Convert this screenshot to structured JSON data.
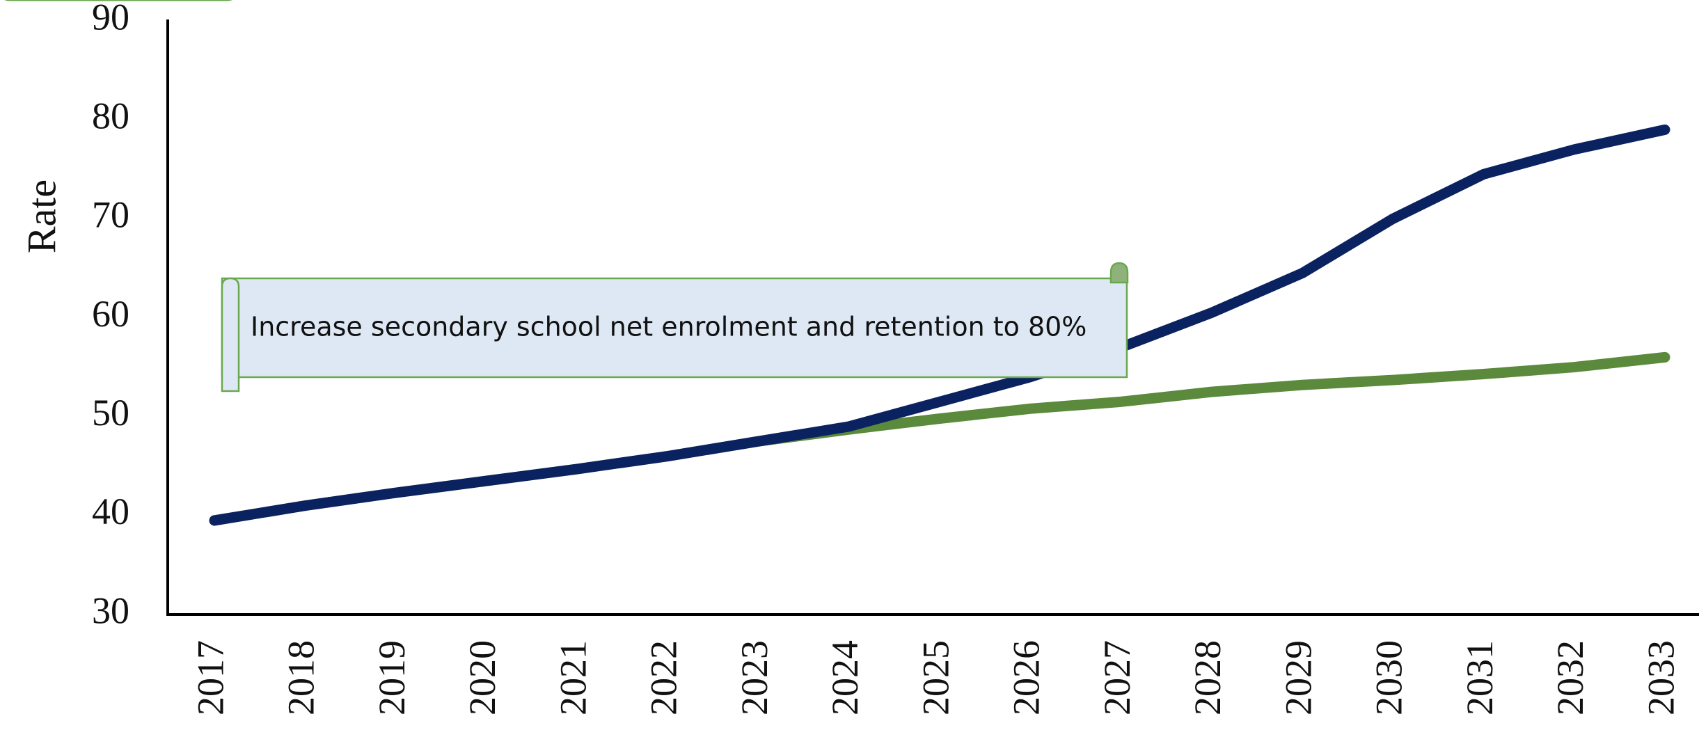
{
  "chart_data": {
    "type": "line",
    "y_label": "Rate",
    "annotation": "Increase secondary school net enrolment and retention to 80%",
    "categories": [
      "2017",
      "2018",
      "2019",
      "2020",
      "2021",
      "2022",
      "2023",
      "2024",
      "2025",
      "2026",
      "2027",
      "2028",
      "2029",
      "2030",
      "2031",
      "2032",
      "2033"
    ],
    "series": [
      {
        "color": "#5b8a3c",
        "values": [
          39.5,
          41,
          42.3,
          43.5,
          44.7,
          46,
          47.5,
          48.7,
          49.8,
          50.8,
          51.5,
          52.5,
          53.2,
          53.7,
          54.3,
          55,
          56
        ]
      },
      {
        "color": "#0b2260",
        "values": [
          39.5,
          41,
          42.3,
          43.5,
          44.7,
          46,
          47.5,
          49,
          51.5,
          54,
          57,
          60.5,
          64.5,
          70,
          74.5,
          77,
          79
        ]
      }
    ],
    "ylim": [
      30,
      90
    ],
    "yticks": [
      30,
      40,
      50,
      60,
      70,
      80,
      90
    ],
    "grid": false
  }
}
